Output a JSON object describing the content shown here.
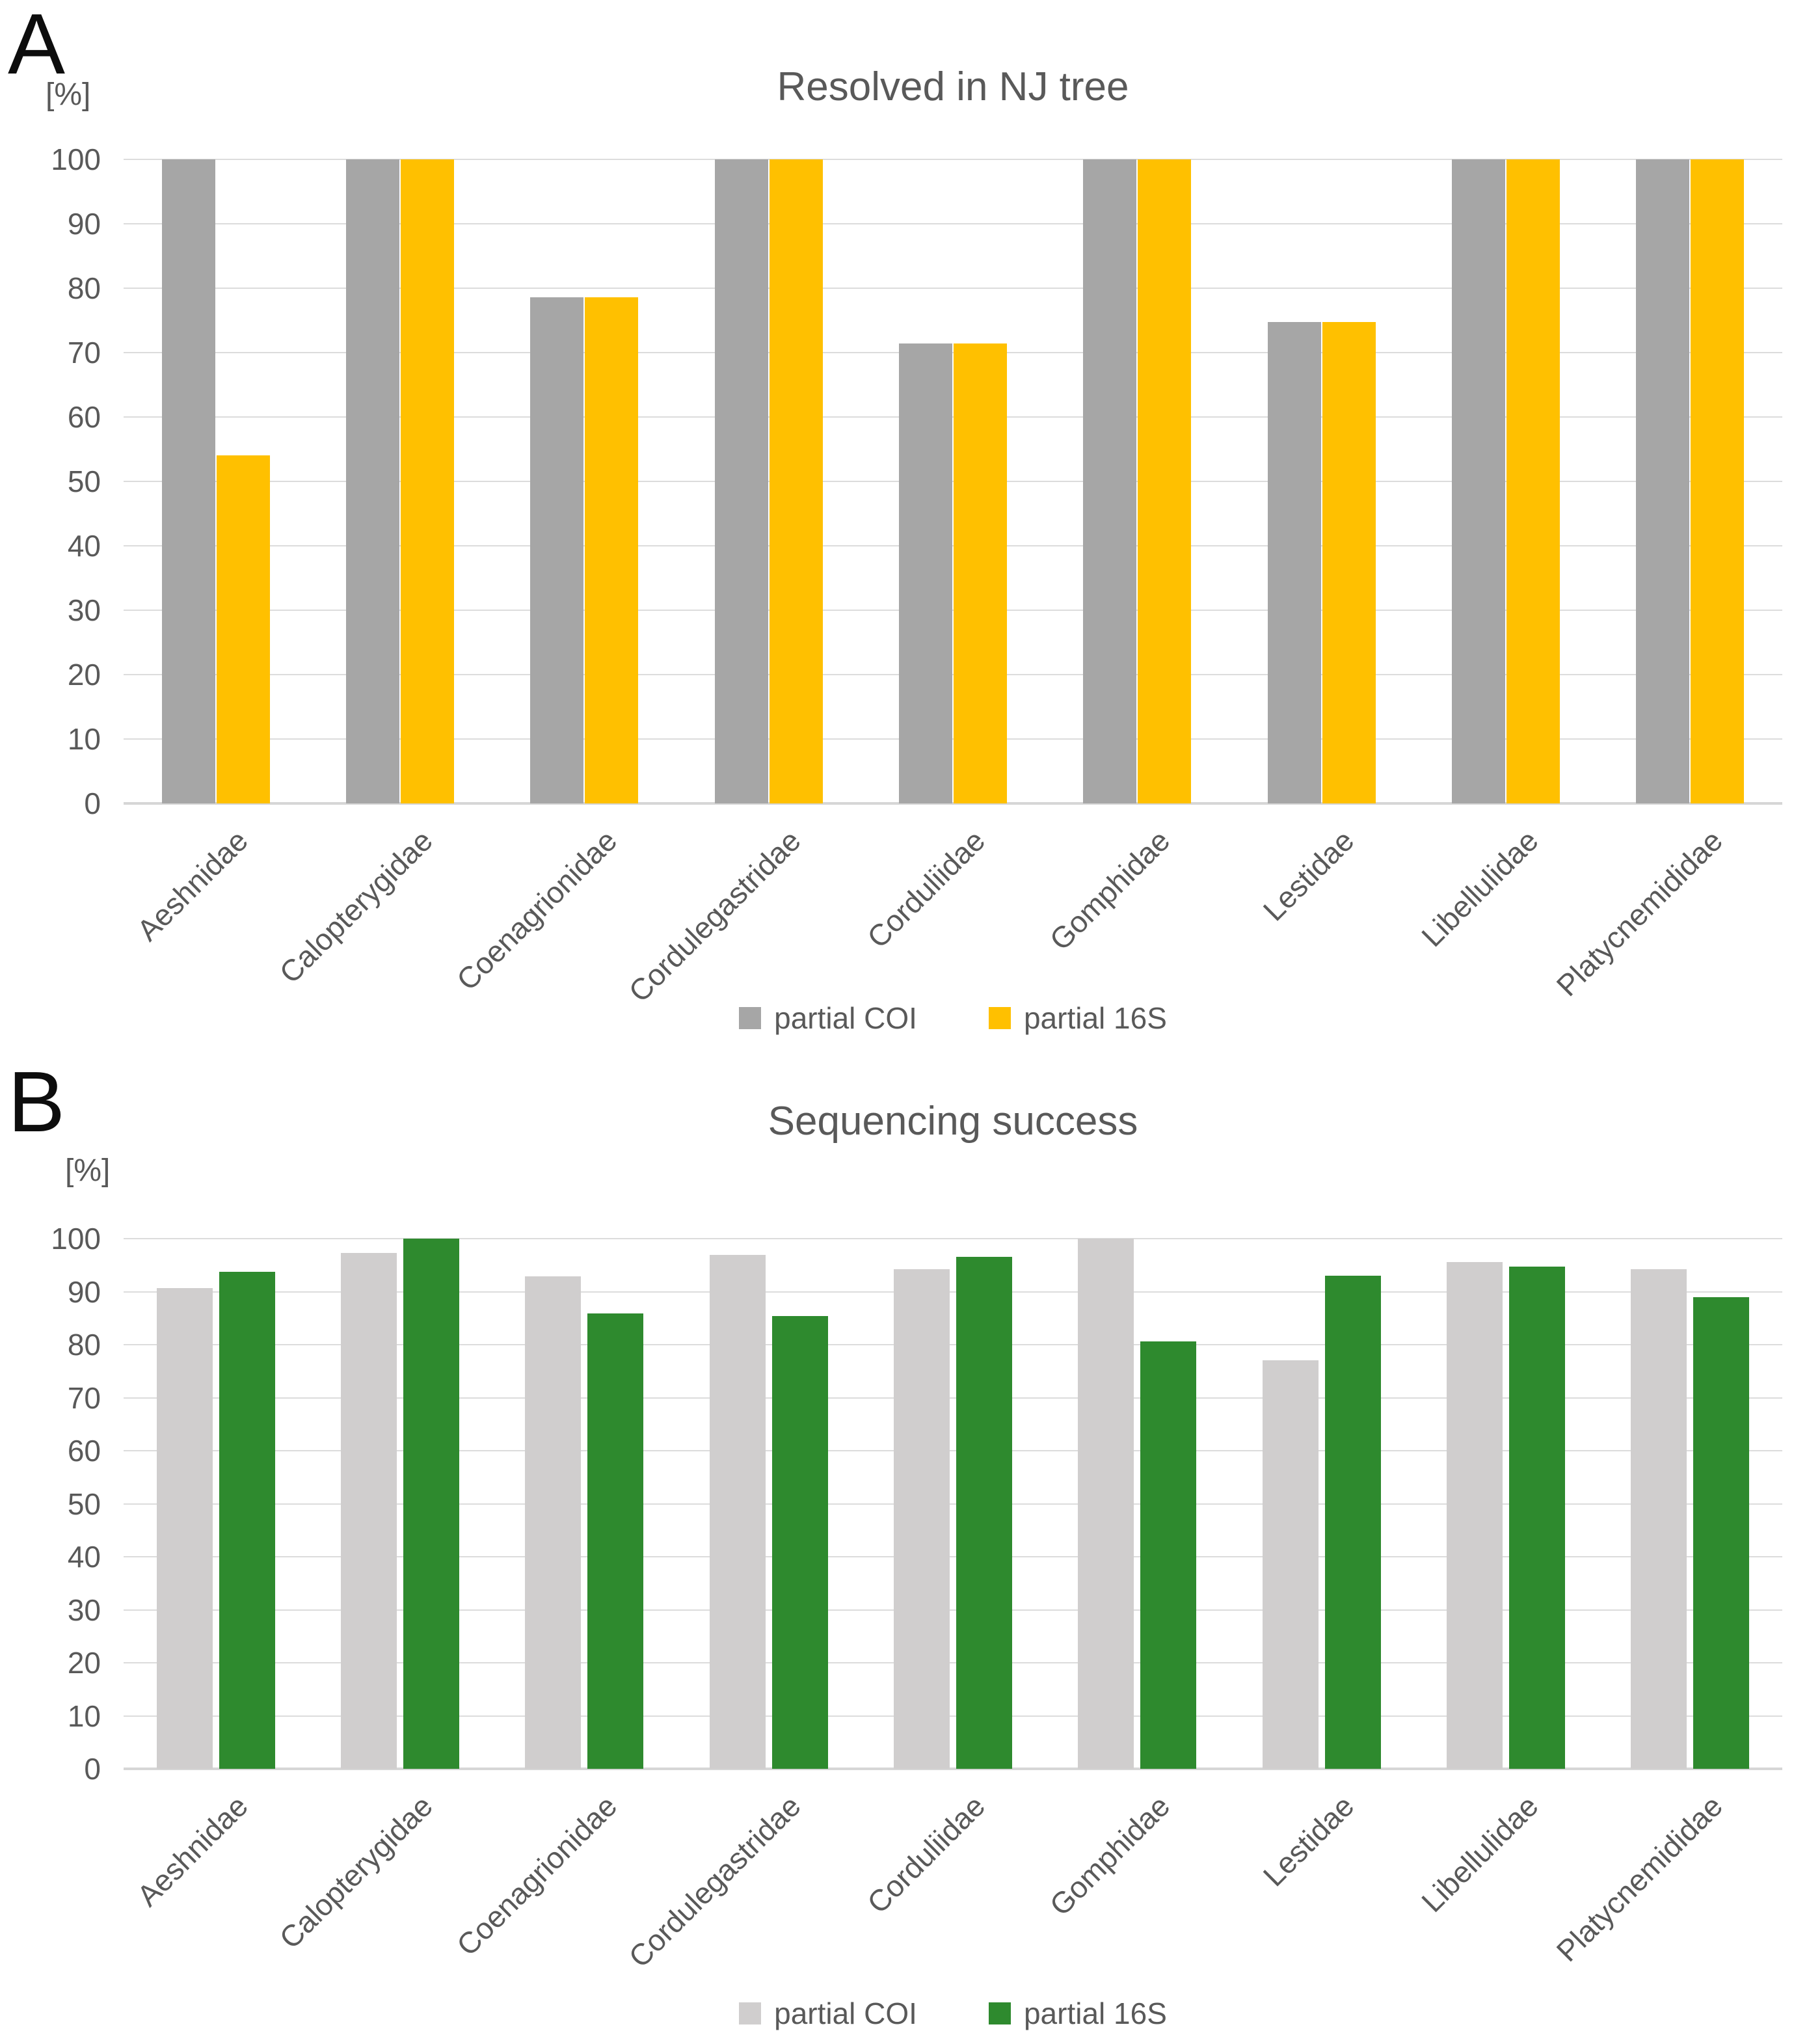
{
  "page": {
    "background": "#FFFFFF",
    "text_color": "#595959"
  },
  "chart_data": [
    {
      "type": "bar",
      "panel_letter": "A",
      "title": "Resolved in NJ tree",
      "unit_label": "[%]",
      "xlabel": "",
      "ylabel": "[%]",
      "ylim": [
        0,
        100
      ],
      "ytick_step": 10,
      "yticks": [
        0,
        10,
        20,
        30,
        40,
        50,
        60,
        70,
        80,
        90,
        100
      ],
      "grid": true,
      "legend_position": "bottom",
      "categories": [
        "Aeshnidae",
        "Calopterygidae",
        "Coenagrionidae",
        "Cordulegastridae",
        "Corduliidae",
        "Gomphidae",
        "Lestidae",
        "Libellulidae",
        "Platycnemididae"
      ],
      "series": [
        {
          "name": "partial COI",
          "color": "#A6A6A6",
          "values": [
            100,
            100,
            78.6,
            100,
            71.4,
            100,
            74.7,
            100,
            100
          ]
        },
        {
          "name": "partial 16S",
          "color": "#FFC000",
          "values": [
            54,
            100,
            78.6,
            100,
            71.4,
            100,
            74.7,
            100,
            100
          ]
        }
      ]
    },
    {
      "type": "bar",
      "panel_letter": "B",
      "title": "Sequencing success",
      "unit_label": "[%]",
      "xlabel": "",
      "ylabel": "[%]",
      "ylim": [
        0,
        100
      ],
      "ytick_step": 10,
      "yticks": [
        0,
        10,
        20,
        30,
        40,
        50,
        60,
        70,
        80,
        90,
        100
      ],
      "grid": true,
      "legend_position": "bottom",
      "categories": [
        "Aeshnidae",
        "Calopterygidae",
        "Coenagrionidae",
        "Cordulegastridae",
        "Corduliidae",
        "Gomphidae",
        "Lestidae",
        "Libellulidae",
        "Platycnemididae"
      ],
      "series": [
        {
          "name": "partial COI",
          "color": "#D0CECE",
          "values": [
            90.7,
            97.3,
            92.9,
            96.9,
            94.2,
            100,
            77.1,
            95.6,
            94.2
          ]
        },
        {
          "name": "partial 16S",
          "color": "#2E8A2E",
          "values": [
            93.7,
            100,
            85.9,
            85.4,
            96.6,
            80.6,
            93,
            94.7,
            89
          ]
        }
      ]
    }
  ]
}
